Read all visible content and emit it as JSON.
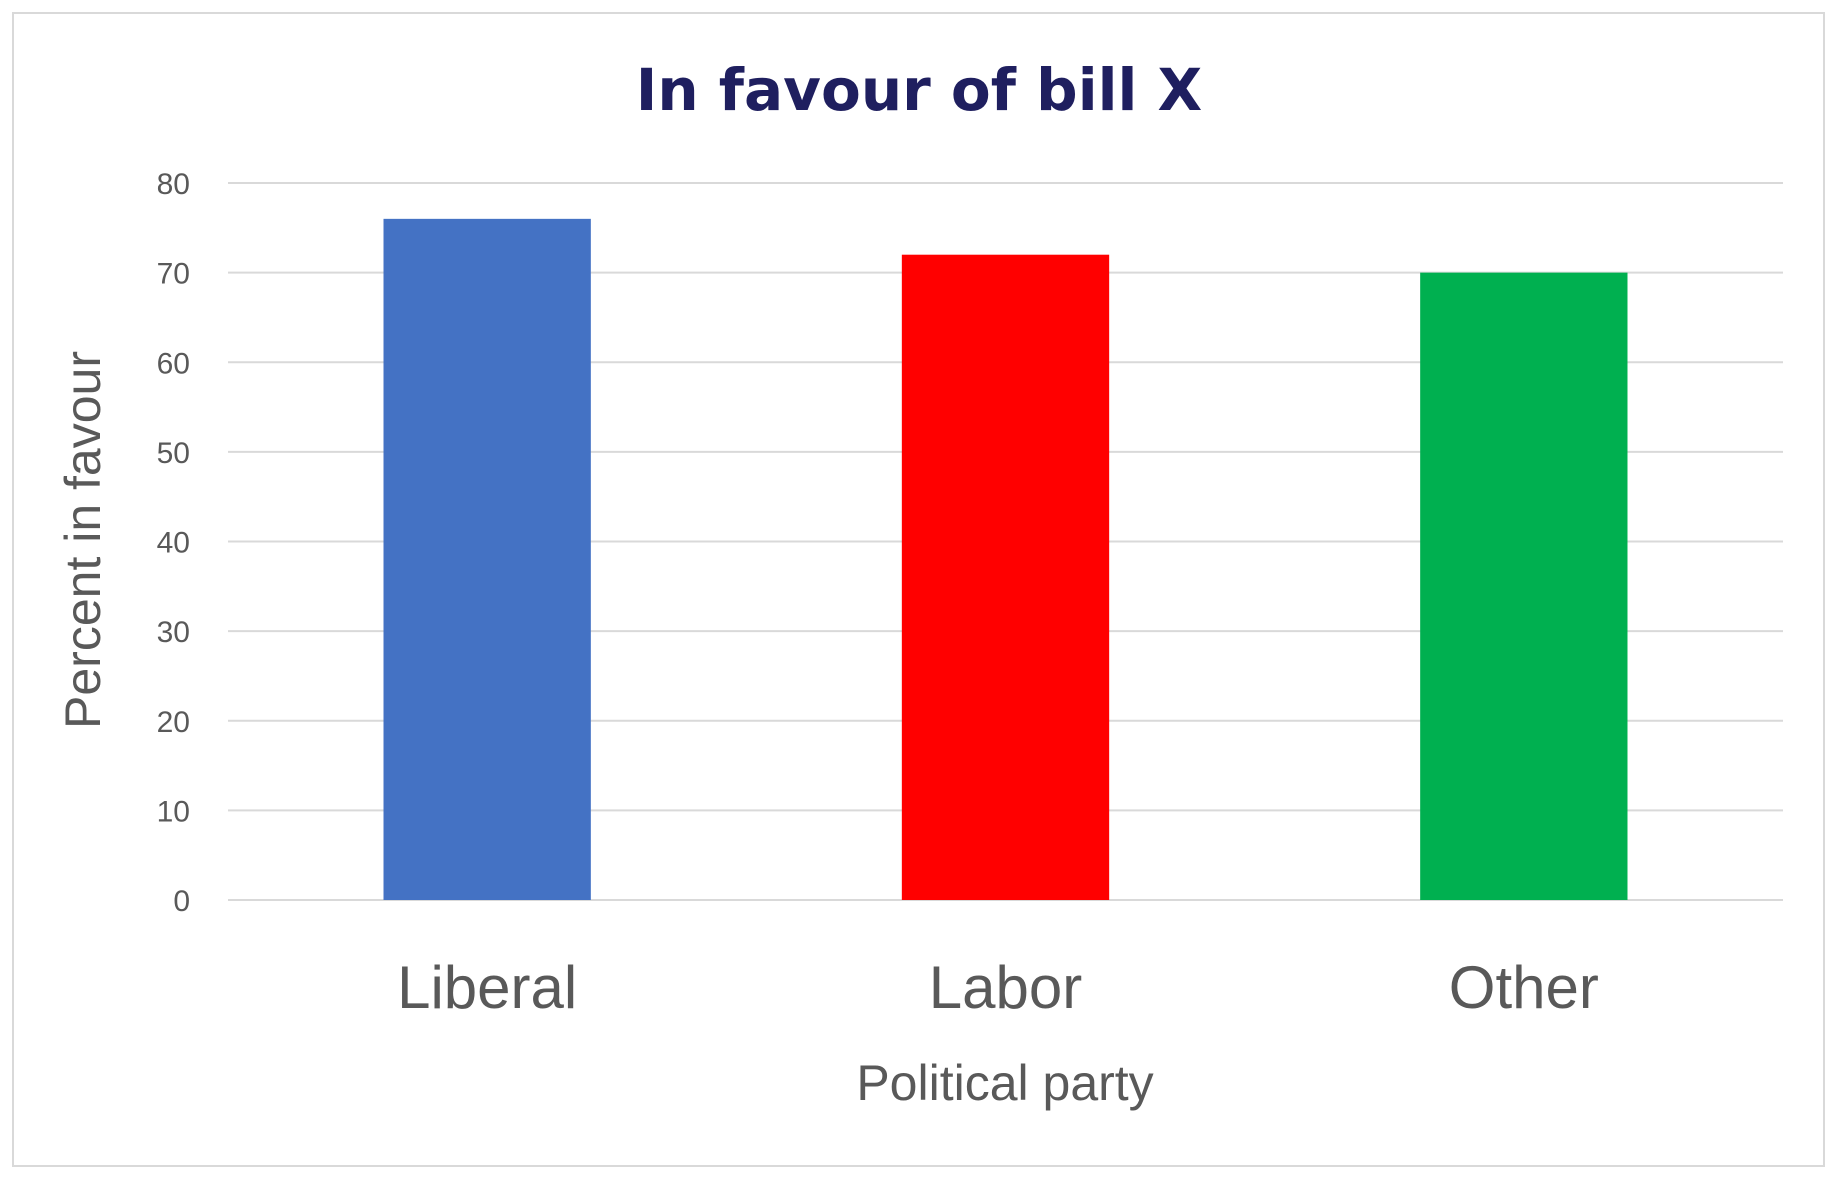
{
  "chart_data": {
    "type": "bar",
    "title": "In favour of bill X",
    "xlabel": "Political party",
    "ylabel": "Percent in favour",
    "categories": [
      "Liberal",
      "Labor",
      "Other"
    ],
    "values": [
      76,
      72,
      70
    ],
    "bar_colors": [
      "#4472C4",
      "#FF0000",
      "#00B050"
    ],
    "ylim": [
      0,
      80
    ],
    "yticks": [
      0,
      10,
      20,
      30,
      40,
      50,
      60,
      70,
      80
    ],
    "grid": true,
    "legend": "none",
    "colors": {
      "title": "#1F1F5F",
      "axis_text": "#595959",
      "gridline": "#D9D9D9"
    }
  }
}
